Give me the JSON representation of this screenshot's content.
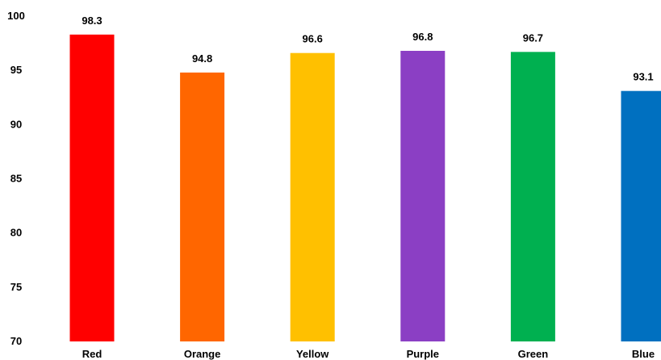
{
  "chart_data": {
    "type": "bar",
    "title": "",
    "xlabel": "",
    "ylabel": "",
    "categories": [
      "Red",
      "Orange",
      "Yellow",
      "Purple",
      "Green",
      "Blue"
    ],
    "values": [
      98.3,
      94.8,
      96.6,
      96.8,
      96.7,
      93.1
    ],
    "value_labels": [
      "98.3",
      "94.8",
      "96.6",
      "96.8",
      "96.7",
      "93.1"
    ],
    "colors": [
      "#ff0000",
      "#ff6600",
      "#ffc000",
      "#8b3fc4",
      "#00b050",
      "#0070c0"
    ],
    "ylim": [
      70,
      100
    ],
    "yticks": [
      70,
      75,
      80,
      85,
      90,
      95,
      100
    ],
    "grid": false,
    "legend": "none"
  }
}
